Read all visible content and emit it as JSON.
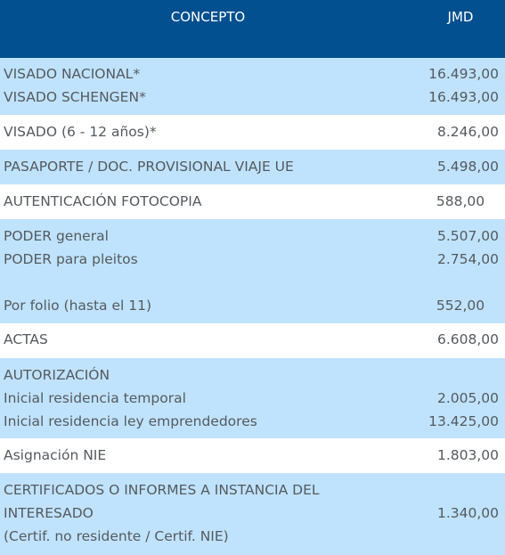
{
  "header": {
    "concept": "CONCEPTO",
    "currency": "JMD"
  },
  "rows": [
    {
      "lines": [
        "VISADO NACIONAL*",
        "VISADO SCHENGEN*"
      ],
      "values": [
        "16.493,00",
        "16.493,00"
      ]
    },
    {
      "lines": [
        "VISADO (6 - 12 años)*"
      ],
      "values": [
        "8.246,00"
      ]
    },
    {
      "lines": [
        "PASAPORTE / DOC. PROVISIONAL VIAJE UE"
      ],
      "values": [
        "5.498,00"
      ]
    },
    {
      "lines": [
        "AUTENTICACIÓN FOTOCOPIA"
      ],
      "values": [
        "588,00"
      ]
    },
    {
      "lines": [
        "PODER general",
        "PODER para pleitos",
        "Por folio (hasta el 11)"
      ],
      "values": [
        "5.507,00",
        "2.754,00",
        "552,00"
      ]
    },
    {
      "lines": [
        "ACTAS"
      ],
      "values": [
        "6.608,00"
      ]
    },
    {
      "lines": [
        "AUTORIZACIÓN",
        "Inicial residencia temporal",
        "Inicial residencia ley emprendedores"
      ],
      "values": [
        "2.005,00",
        "13.425,00"
      ]
    },
    {
      "lines": [
        "Asignación NIE"
      ],
      "values": [
        "1.803,00"
      ]
    },
    {
      "lines": [
        "CERTIFICADOS O INFORMES A INSTANCIA DEL",
        "INTERESADO",
        "(Certif. no residente / Certif. NIE)"
      ],
      "values": [
        "1.340,00"
      ]
    }
  ]
}
